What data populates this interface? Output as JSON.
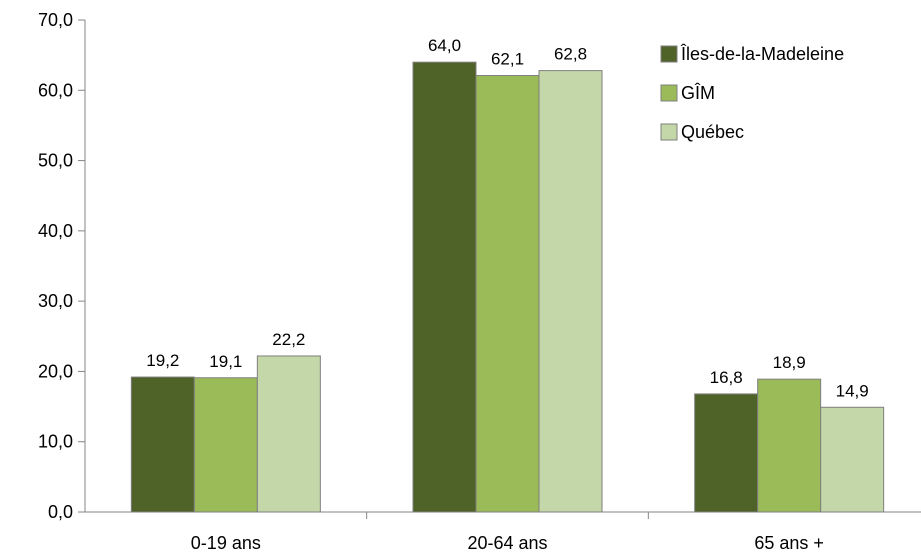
{
  "chart_data": {
    "type": "bar",
    "categories": [
      "0-19 ans",
      "20-64 ans",
      "65 ans +"
    ],
    "series": [
      {
        "name": "Îles-de-la-Madeleine",
        "values": [
          19.2,
          64.0,
          16.8
        ],
        "color": "#4f6228",
        "labels": [
          "19,2",
          "64,0",
          "16,8"
        ]
      },
      {
        "name": "GÎM",
        "values": [
          19.1,
          62.1,
          18.9
        ],
        "color": "#9bbb59",
        "labels": [
          "19,1",
          "62,1",
          "18,9"
        ]
      },
      {
        "name": "Québec",
        "values": [
          22.2,
          62.8,
          14.9
        ],
        "color": "#c4d7a8",
        "labels": [
          "22,2",
          "62,8",
          "14,9"
        ]
      }
    ],
    "ylim": [
      0,
      70
    ],
    "yticks": [
      0,
      10,
      20,
      30,
      40,
      50,
      60,
      70
    ],
    "ytick_labels": [
      "0,0",
      "10,0",
      "20,0",
      "30,0",
      "40,0",
      "50,0",
      "60,0",
      "70,0"
    ],
    "grid": false,
    "legend": "top-right",
    "bar_border_color": "#7f7f7f",
    "axis_color": "#868686"
  }
}
